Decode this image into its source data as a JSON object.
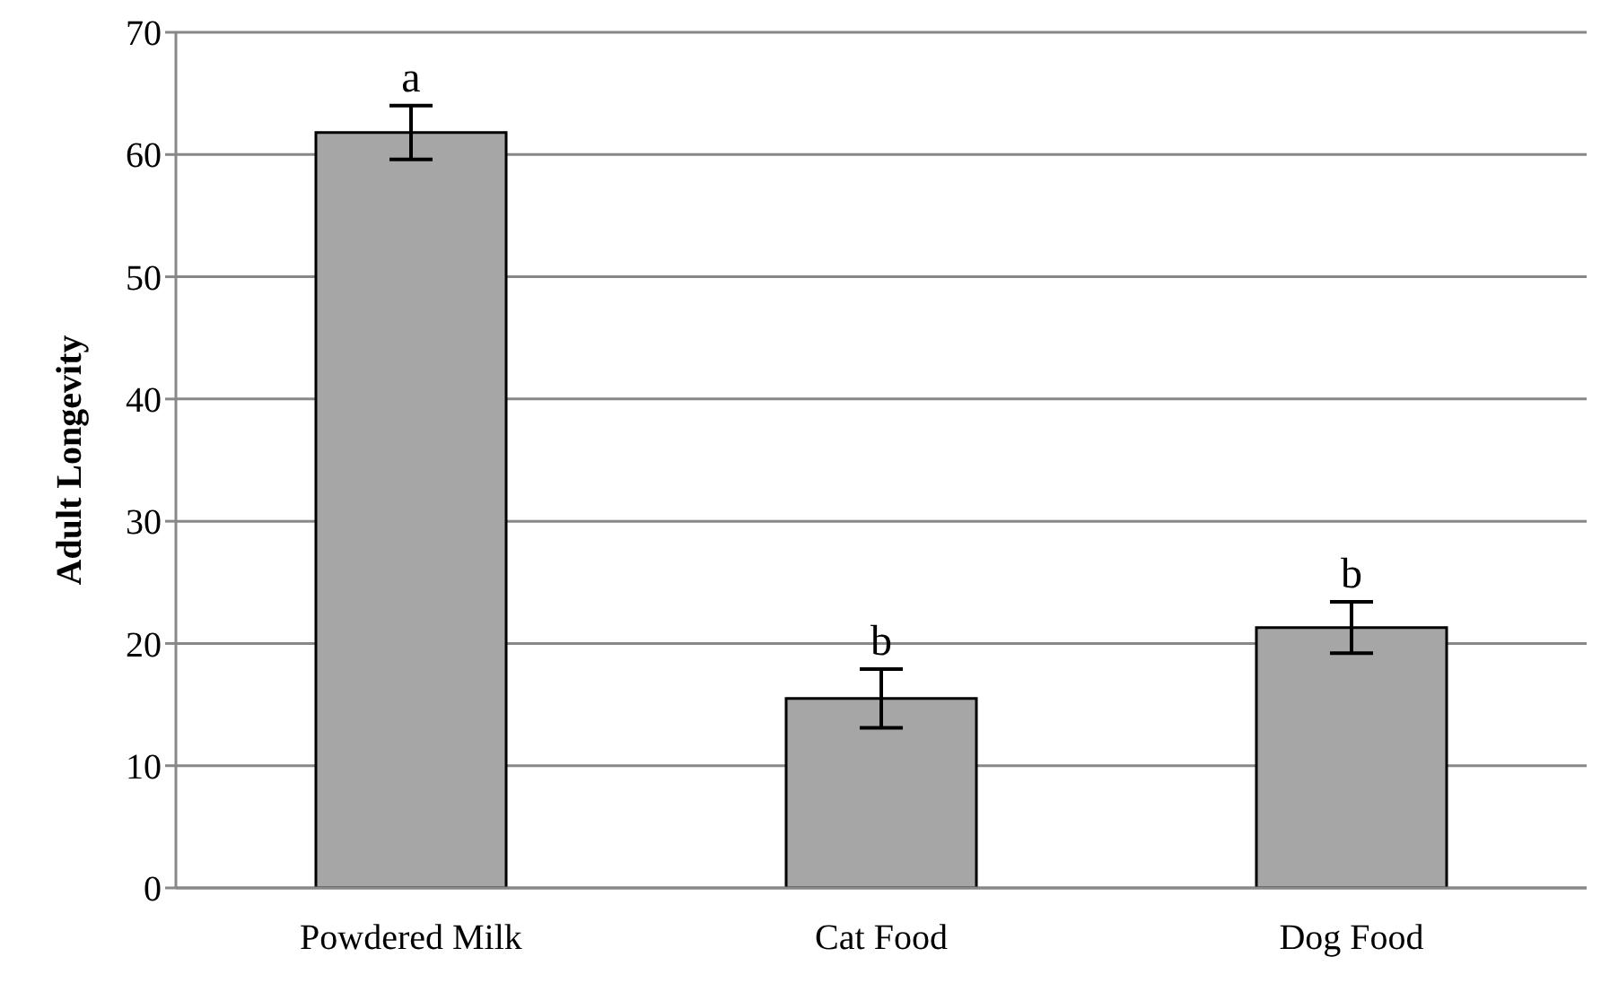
{
  "chart_data": {
    "type": "bar",
    "ylabel": "Adult Longevity",
    "categories": [
      "Powdered Milk",
      "Cat Food",
      "Dog Food"
    ],
    "values": [
      61.8,
      15.5,
      21.3
    ],
    "errors": [
      2.2,
      2.4,
      2.1
    ],
    "color": "#a6a6a6",
    "ylim": [
      0,
      70
    ],
    "yticks": [
      0,
      10,
      20,
      30,
      40,
      50,
      60,
      70
    ],
    "grid": "y",
    "annotations": [
      {
        "text": "a",
        "x": "Powdered Milk",
        "y": 64
      },
      {
        "text": "b",
        "x": "Cat Food",
        "y": 17.9
      },
      {
        "text": "b",
        "x": "Dog Food",
        "y": 23.4
      }
    ]
  }
}
